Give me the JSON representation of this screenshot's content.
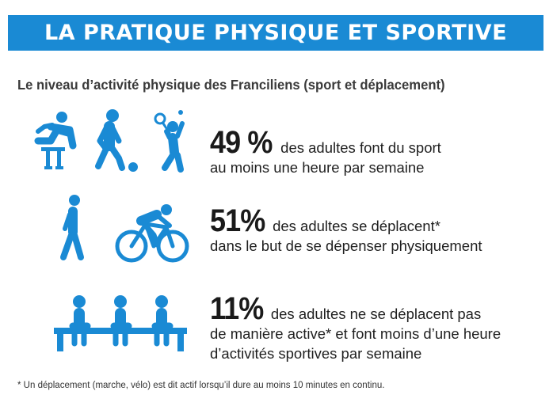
{
  "banner": {
    "title": "LA PRATIQUE PHYSIQUE ET SPORTIVE"
  },
  "subtitle": "Le niveau d’activité physique des Franciliens (sport et déplacement)",
  "stats": [
    {
      "percent": "49 %",
      "line1": "des adultes font du sport",
      "line2": "au moins une heure par semaine",
      "icons": [
        "hurdler-icon",
        "football-player-icon",
        "tennis-player-icon"
      ]
    },
    {
      "percent": "51%",
      "line1": "des adultes se déplacent*",
      "line2": "dans le but de se dépenser physiquement",
      "icons": [
        "walking-person-icon",
        "cyclist-icon"
      ]
    },
    {
      "percent": "11%",
      "line1": "des adultes ne se déplacent pas",
      "line2": "de manière active* et font moins d’une heure",
      "line3": "d’activités sportives par semaine",
      "icons": [
        "sitting-person-icon",
        "sitting-person-icon",
        "sitting-person-icon"
      ]
    }
  ],
  "footnote": "* Un déplacement (marche, vélo) est dit actif lorsqu’il dure au moins 10 minutes en continu.",
  "colors": {
    "accent": "#1a8ad4",
    "text": "#222222"
  }
}
